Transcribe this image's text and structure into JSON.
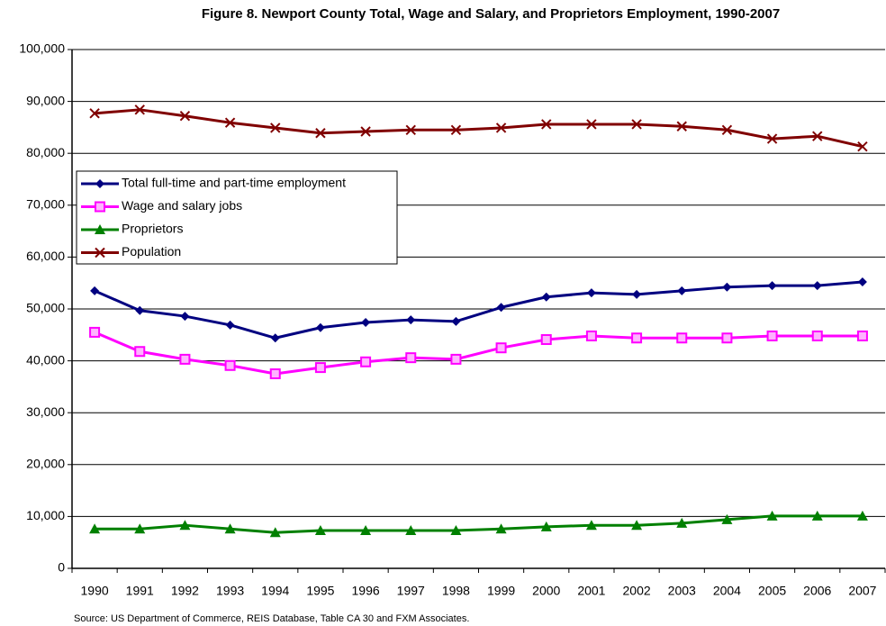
{
  "chart_data": {
    "type": "line",
    "title": "Figure 8. Newport County Total, Wage and Salary, and Proprietors Employment, 1990-2007",
    "note": "Source:  US Department of Commerce, REIS Database, Table CA 30 and FXM Associates.",
    "categories": [
      "1990",
      "1991",
      "1992",
      "1993",
      "1994",
      "1995",
      "1996",
      "1997",
      "1998",
      "1999",
      "2000",
      "2001",
      "2002",
      "2003",
      "2004",
      "2005",
      "2006",
      "2007"
    ],
    "series": [
      {
        "name": "Total full-time and part-time employment",
        "color": "#000080",
        "marker": "diamond",
        "values": [
          53500,
          49700,
          48600,
          46900,
          44400,
          46400,
          47400,
          47900,
          47600,
          50300,
          52300,
          53100,
          52800,
          53500,
          54200,
          54500,
          54500,
          55200
        ]
      },
      {
        "name": "Wage and salary jobs",
        "color": "#ff00ff",
        "marker": "square",
        "values": [
          45500,
          41800,
          40300,
          39100,
          37500,
          38700,
          39800,
          40600,
          40300,
          42500,
          44100,
          44800,
          44400,
          44400,
          44400,
          44800,
          44800,
          44800
        ]
      },
      {
        "name": "Proprietors",
        "color": "#008000",
        "marker": "triangle",
        "values": [
          7600,
          7600,
          8300,
          7600,
          6900,
          7300,
          7300,
          7300,
          7300,
          7600,
          8000,
          8300,
          8300,
          8700,
          9400,
          10100,
          10100,
          10100
        ]
      },
      {
        "name": "Population",
        "color": "#800000",
        "marker": "x",
        "values": [
          87700,
          88400,
          87200,
          85900,
          84900,
          83900,
          84200,
          84500,
          84500,
          84900,
          85600,
          85600,
          85600,
          85200,
          84500,
          82800,
          83300,
          81300
        ]
      }
    ],
    "ylim": [
      0,
      100000
    ],
    "yticks": [
      0,
      {
        "value": 10000,
        "label": "10,000"
      },
      {
        "value": 20000,
        "label": "20,000"
      },
      {
        "value": 30000,
        "label": "30,000"
      },
      {
        "value": 40000,
        "label": "40,000"
      },
      {
        "value": 50000,
        "label": "50,000"
      },
      {
        "value": 60000,
        "label": "60,000"
      },
      {
        "value": 70000,
        "label": "70,000"
      },
      {
        "value": 80000,
        "label": "80,000"
      },
      {
        "value": 90000,
        "label": "90,000"
      },
      {
        "value": 100000,
        "label": "100,000"
      }
    ],
    "grid": true,
    "legend": "upper-left"
  }
}
